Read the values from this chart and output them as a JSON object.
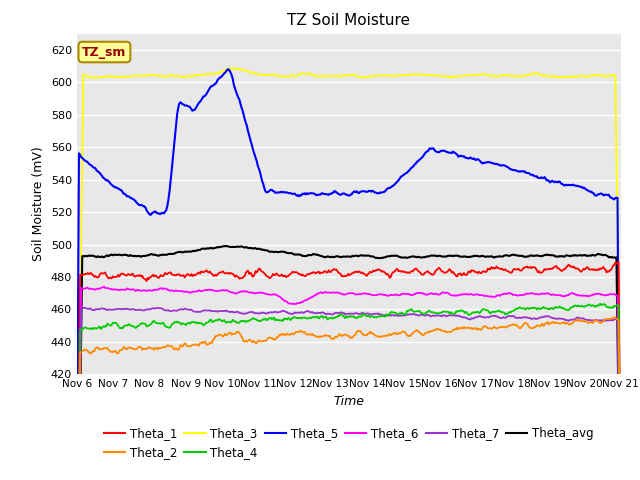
{
  "title": "TZ Soil Moisture",
  "ylabel": "Soil Moisture (mV)",
  "xlabel": "Time",
  "xlim": [
    0,
    15
  ],
  "ylim": [
    420,
    630
  ],
  "yticks": [
    420,
    440,
    460,
    480,
    500,
    520,
    540,
    560,
    580,
    600,
    620
  ],
  "xtick_labels": [
    "Nov 6",
    "Nov 7",
    "Nov 8",
    "Nov 9",
    "Nov 10",
    "Nov 11",
    "Nov 12",
    "Nov 13",
    "Nov 14",
    "Nov 15",
    "Nov 16",
    "Nov 17",
    "Nov 18",
    "Nov 19",
    "Nov 20",
    "Nov 21"
  ],
  "background_color": "#e8e8e8",
  "series_colors": {
    "Theta_1": "#ff0000",
    "Theta_2": "#ff8800",
    "Theta_3": "#ffff00",
    "Theta_4": "#00cc00",
    "Theta_5": "#0000ff",
    "Theta_6": "#ff00ff",
    "Theta_7": "#9933cc",
    "Theta_avg": "#000000"
  },
  "legend_order": [
    "Theta_1",
    "Theta_2",
    "Theta_3",
    "Theta_4",
    "Theta_5",
    "Theta_6",
    "Theta_7",
    "Theta_avg"
  ],
  "figsize": [
    6.4,
    4.8
  ],
  "dpi": 100
}
